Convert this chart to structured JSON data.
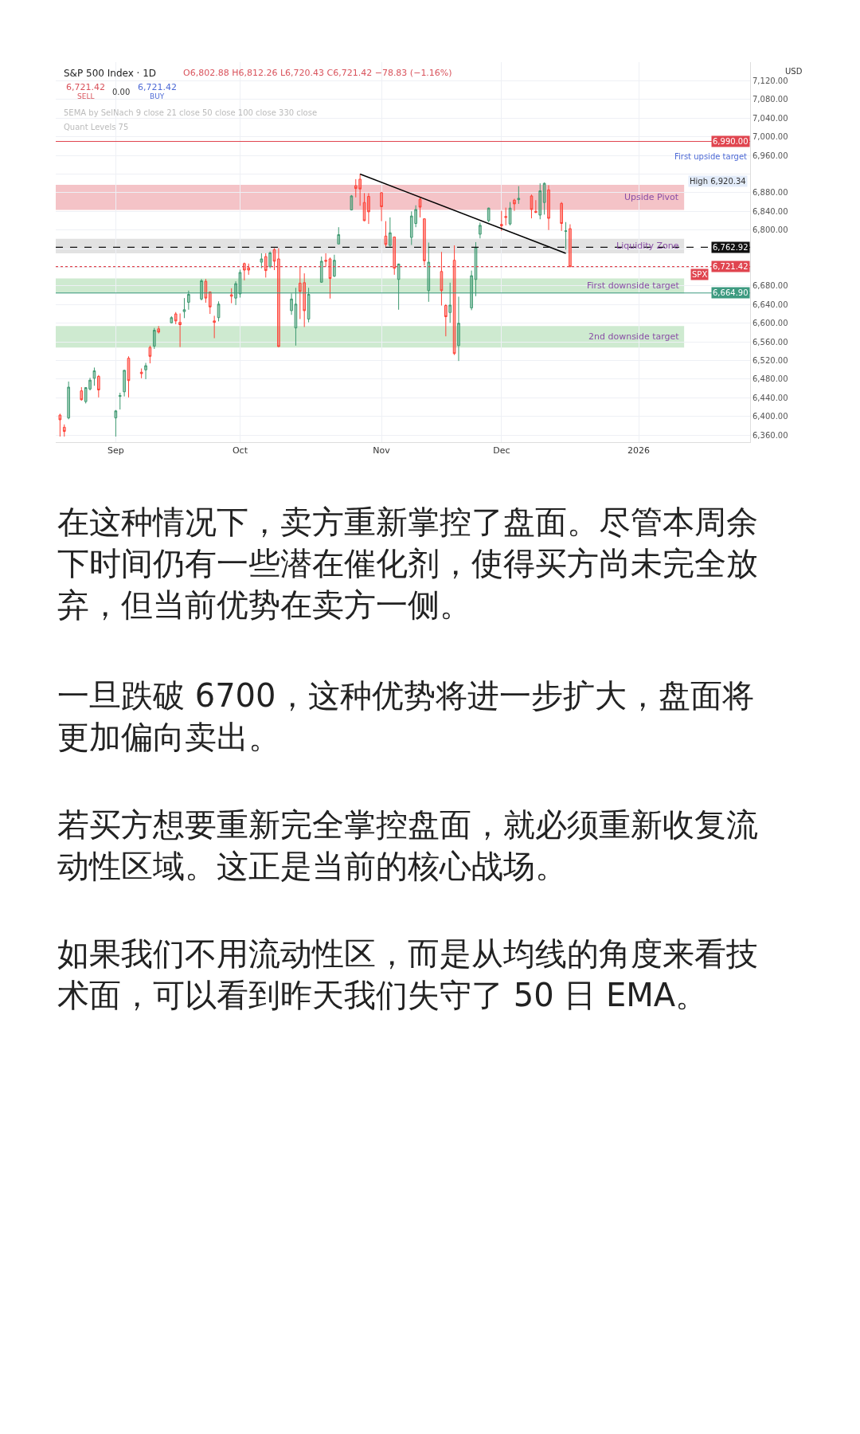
{
  "chart_data": {
    "type": "candlestick",
    "title": "S&P 500 Index · 1D",
    "subtitle": "O6,802.88 H6,812.26 L6,720.43 C6,721.42 −78.83 (−1.16%)",
    "x": [
      "2025-08-20",
      "2025-08-21",
      "2025-08-22",
      "2025-08-25",
      "2025-08-26",
      "2025-08-27",
      "2025-08-28",
      "2025-08-29",
      "2025-09-02",
      "2025-09-03",
      "2025-09-04",
      "2025-09-05",
      "2025-09-08",
      "2025-09-09",
      "2025-09-10",
      "2025-09-11",
      "2025-09-12",
      "2025-09-15",
      "2025-09-16",
      "2025-09-17",
      "2025-09-18",
      "2025-09-19",
      "2025-09-22",
      "2025-09-23",
      "2025-09-24",
      "2025-09-25",
      "2025-09-26",
      "2025-09-29",
      "2025-09-30",
      "2025-10-01",
      "2025-10-02",
      "2025-10-03",
      "2025-10-06",
      "2025-10-07",
      "2025-10-08",
      "2025-10-09",
      "2025-10-10",
      "2025-10-13",
      "2025-10-14",
      "2025-10-15",
      "2025-10-16",
      "2025-10-17",
      "2025-10-20",
      "2025-10-21",
      "2025-10-22",
      "2025-10-23",
      "2025-10-24",
      "2025-10-27",
      "2025-10-28",
      "2025-10-29",
      "2025-10-30",
      "2025-10-31",
      "2025-11-03",
      "2025-11-04",
      "2025-11-05",
      "2025-11-06",
      "2025-11-07",
      "2025-11-10",
      "2025-11-11",
      "2025-11-12",
      "2025-11-13",
      "2025-11-14",
      "2025-11-17",
      "2025-11-18",
      "2025-11-19",
      "2025-11-20",
      "2025-11-21",
      "2025-11-24",
      "2025-11-25",
      "2025-11-26",
      "2025-11-28",
      "2025-12-01",
      "2025-12-02",
      "2025-12-03",
      "2025-12-04",
      "2025-12-05",
      "2025-12-08",
      "2025-12-09",
      "2025-12-10",
      "2025-12-11",
      "2025-12-12",
      "2025-12-15",
      "2025-12-16",
      "2025-12-17"
    ],
    "ohlc": [
      [
        6403,
        6406,
        6357,
        6393
      ],
      [
        6377,
        6383,
        6357,
        6368
      ],
      [
        6397,
        6475,
        6394,
        6463
      ],
      [
        6455,
        6463,
        6434,
        6436
      ],
      [
        6432,
        6463,
        6428,
        6462
      ],
      [
        6459,
        6483,
        6456,
        6478
      ],
      [
        6482,
        6505,
        6466,
        6498
      ],
      [
        6486,
        6489,
        6441,
        6457
      ],
      [
        6397,
        6414,
        6357,
        6412
      ],
      [
        6443,
        6451,
        6415,
        6445
      ],
      [
        6453,
        6500,
        6443,
        6499
      ],
      [
        6525,
        6529,
        6441,
        6477
      ],
      [
        6495,
        6503,
        6482,
        6492
      ],
      [
        6500,
        6515,
        6480,
        6509
      ],
      [
        6548,
        6552,
        6514,
        6529
      ],
      [
        6551,
        6590,
        6545,
        6585
      ],
      [
        6588,
        6594,
        6578,
        6581
      ],
      [
        6601,
        6615,
        6600,
        6612
      ],
      [
        6620,
        6624,
        6598,
        6605
      ],
      [
        6602,
        6621,
        6549,
        6597
      ],
      [
        6625,
        6654,
        6611,
        6629
      ],
      [
        6645,
        6670,
        6629,
        6662
      ],
      [
        6652,
        6695,
        6649,
        6691
      ],
      [
        6690,
        6695,
        6644,
        6654
      ],
      [
        6667,
        6668,
        6620,
        6635
      ],
      [
        6605,
        6616,
        6568,
        6602
      ],
      [
        6612,
        6647,
        6604,
        6641
      ],
      [
        6661,
        6675,
        6643,
        6658
      ],
      [
        6654,
        6690,
        6639,
        6685
      ],
      [
        6663,
        6715,
        6655,
        6709
      ],
      [
        6728,
        6730,
        6692,
        6714
      ],
      [
        6719,
        6728,
        6704,
        6714
      ],
      [
        6731,
        6750,
        6718,
        6738
      ],
      [
        6743,
        6750,
        6698,
        6713
      ],
      [
        6722,
        6754,
        6718,
        6751
      ],
      [
        6758,
        6761,
        6714,
        6733
      ],
      [
        6738,
        6761,
        6549,
        6550
      ],
      [
        6627,
        6664,
        6618,
        6652
      ],
      [
        6590,
        6676,
        6552,
        6641
      ],
      [
        6686,
        6721,
        6609,
        6668
      ],
      [
        6687,
        6707,
        6592,
        6627
      ],
      [
        6609,
        6676,
        6602,
        6662
      ],
      [
        6688,
        6743,
        6687,
        6733
      ],
      [
        6735,
        6750,
        6721,
        6733
      ],
      [
        6738,
        6741,
        6653,
        6696
      ],
      [
        6701,
        6747,
        6699,
        6735
      ],
      [
        6770,
        6806,
        6770,
        6790
      ],
      [
        6843,
        6875,
        6842,
        6873
      ],
      [
        6895,
        6909,
        6870,
        6889
      ],
      [
        6909,
        6920.34,
        6852,
        6888
      ],
      [
        6859,
        6879,
        6819,
        6820
      ],
      [
        6872,
        6879,
        6813,
        6839
      ],
      [
        6880,
        6881,
        6819,
        6850
      ],
      [
        6787,
        6819,
        6764,
        6769
      ],
      [
        6767,
        6827,
        6764,
        6794
      ],
      [
        6785,
        6786,
        6704,
        6718
      ],
      [
        6694,
        6728,
        6629,
        6727
      ],
      [
        6784,
        6840,
        6768,
        6830
      ],
      [
        6814,
        6853,
        6806,
        6844
      ],
      [
        6866,
        6870,
        6827,
        6849
      ],
      [
        6824,
        6825,
        6724,
        6734
      ],
      [
        6670,
        6773,
        6646,
        6731
      ],
      [
        6711,
        6753,
        6638,
        6670
      ],
      [
        6638,
        6641,
        6572,
        6614
      ],
      [
        6623,
        6687,
        6601,
        6639
      ],
      [
        6735,
        6767,
        6532,
        6535
      ],
      [
        6552,
        6657,
        6519,
        6600
      ],
      [
        6633,
        6713,
        6628,
        6702
      ],
      [
        6694,
        6774,
        6658,
        6763
      ],
      [
        6791,
        6816,
        6782,
        6810
      ],
      [
        6820,
        6848,
        6817,
        6847
      ],
      [
        6812,
        6841,
        6798,
        6809
      ],
      [
        6829,
        6848,
        6810,
        6827
      ],
      [
        6813,
        6860,
        6810,
        6847
      ],
      [
        6864,
        6867,
        6841,
        6856
      ],
      [
        6865,
        6894,
        6856,
        6868
      ],
      [
        6873,
        6876,
        6825,
        6844
      ],
      [
        6840,
        6864,
        6836,
        6838
      ],
      [
        6832,
        6900,
        6823,
        6884
      ],
      [
        6859,
        6902,
        6833,
        6900
      ],
      [
        6886,
        6896,
        6800,
        6825
      ],
      [
        6857,
        6860,
        6798,
        6814
      ],
      [
        6797,
        6817,
        6758,
        6798
      ],
      [
        6802.88,
        6812.26,
        6720.43,
        6721.42
      ]
    ],
    "series": [
      {
        "type": "line",
        "x": [
          "2025-10-29",
          "2025-12-16"
        ],
        "values": [
          6920,
          6750
        ],
        "color": "#000000"
      }
    ],
    "xlim": [
      "2025-08-19",
      "2026-01-28"
    ],
    "xticks": [
      {
        "value": "2025-09-02",
        "label": "Sep"
      },
      {
        "value": "2025-10-01",
        "label": "Oct"
      },
      {
        "value": "2025-11-03",
        "label": "Nov"
      },
      {
        "value": "2025-12-01",
        "label": "Dec"
      },
      {
        "value": "2026-01-02",
        "label": "2026"
      }
    ],
    "ylim": [
      6345,
      7160
    ],
    "yticks": [
      {
        "value": 6360,
        "label": "6,360.00"
      },
      {
        "value": 6400,
        "label": "6,400.00"
      },
      {
        "value": 6440,
        "label": "6,440.00"
      },
      {
        "value": 6480,
        "label": "6,480.00"
      },
      {
        "value": 6520,
        "label": "6,520.00"
      },
      {
        "value": 6560,
        "label": "6,560.00"
      },
      {
        "value": 6600,
        "label": "6,600.00"
      },
      {
        "value": 6640,
        "label": "6,640.00"
      },
      {
        "value": 6680,
        "label": "6,680.00"
      },
      {
        "value": 6720,
        "label": null
      },
      {
        "value": 6760,
        "label": null
      },
      {
        "value": 6800,
        "label": "6,800.00"
      },
      {
        "value": 6840,
        "label": "6,840.00"
      },
      {
        "value": 6880,
        "label": "6,880.00"
      },
      {
        "value": 6920,
        "label": null
      },
      {
        "value": 6960,
        "label": "6,960.00"
      },
      {
        "value": 7000,
        "label": "7,000.00"
      },
      {
        "value": 7040,
        "label": "7,040.00"
      },
      {
        "value": 7080,
        "label": "7,080.00"
      },
      {
        "value": 7120,
        "label": "7,120.00"
      }
    ],
    "grid": true,
    "bands": [
      {
        "axis": "y",
        "from": 6843,
        "to": 6897,
        "label": "Upside Pivot",
        "color": "#f2b8bd"
      },
      {
        "axis": "y",
        "from": 6750,
        "to": 6781,
        "label": "Liquidity Zone",
        "color": "#dddddd"
      },
      {
        "axis": "y",
        "from": 6664,
        "to": 6696,
        "label": "First downside target",
        "color": "#c6e6c8"
      },
      {
        "axis": "y",
        "from": 6548,
        "to": 6594,
        "label": "2nd downside target",
        "color": "#c6e6c8"
      }
    ],
    "ref_lines": [
      {
        "axis": "y",
        "value": 6990,
        "label": "6,990.00",
        "color": "#e0454f",
        "line_style": "solid"
      },
      {
        "axis": "y",
        "value": 6762.92,
        "label": "6,762.92",
        "color": "#111111",
        "line_style": "dashed"
      },
      {
        "axis": "y",
        "value": 6721.42,
        "label": "6,721.42",
        "color": "#e0454f",
        "line_style": "dotted"
      },
      {
        "axis": "y",
        "value": 6664.9,
        "label": "6,664.90",
        "color": "#3d9a80",
        "line_style": "solid"
      }
    ],
    "annotations": [
      "6,721.42",
      "SELL",
      "0.00",
      "6,721.42",
      "BUY",
      "5EMA by SelNach 9 close 21 close 50 close 100 close 330 close",
      "Quant Levels 75",
      "USD",
      "High 6,920.34",
      "First upside target",
      "SPX",
      "在这种情况下，卖方重新掌控了盘面。尽管本周余下时间仍有一些潜在催化剂，使得买方尚未完全放弃，但当前优势在卖方一侧。",
      "一旦跌破 6700，这种优势将进一步扩大，盘面将更加偏向卖出。",
      "若买方想要重新完全掌控盘面，就必须重新收复流动性区域。这正是当前的核心战场。",
      "如果我们不用流动性区，而是从均线的角度来看技术面，可以看到昨天我们失守了 50 日 EMA。"
    ]
  }
}
